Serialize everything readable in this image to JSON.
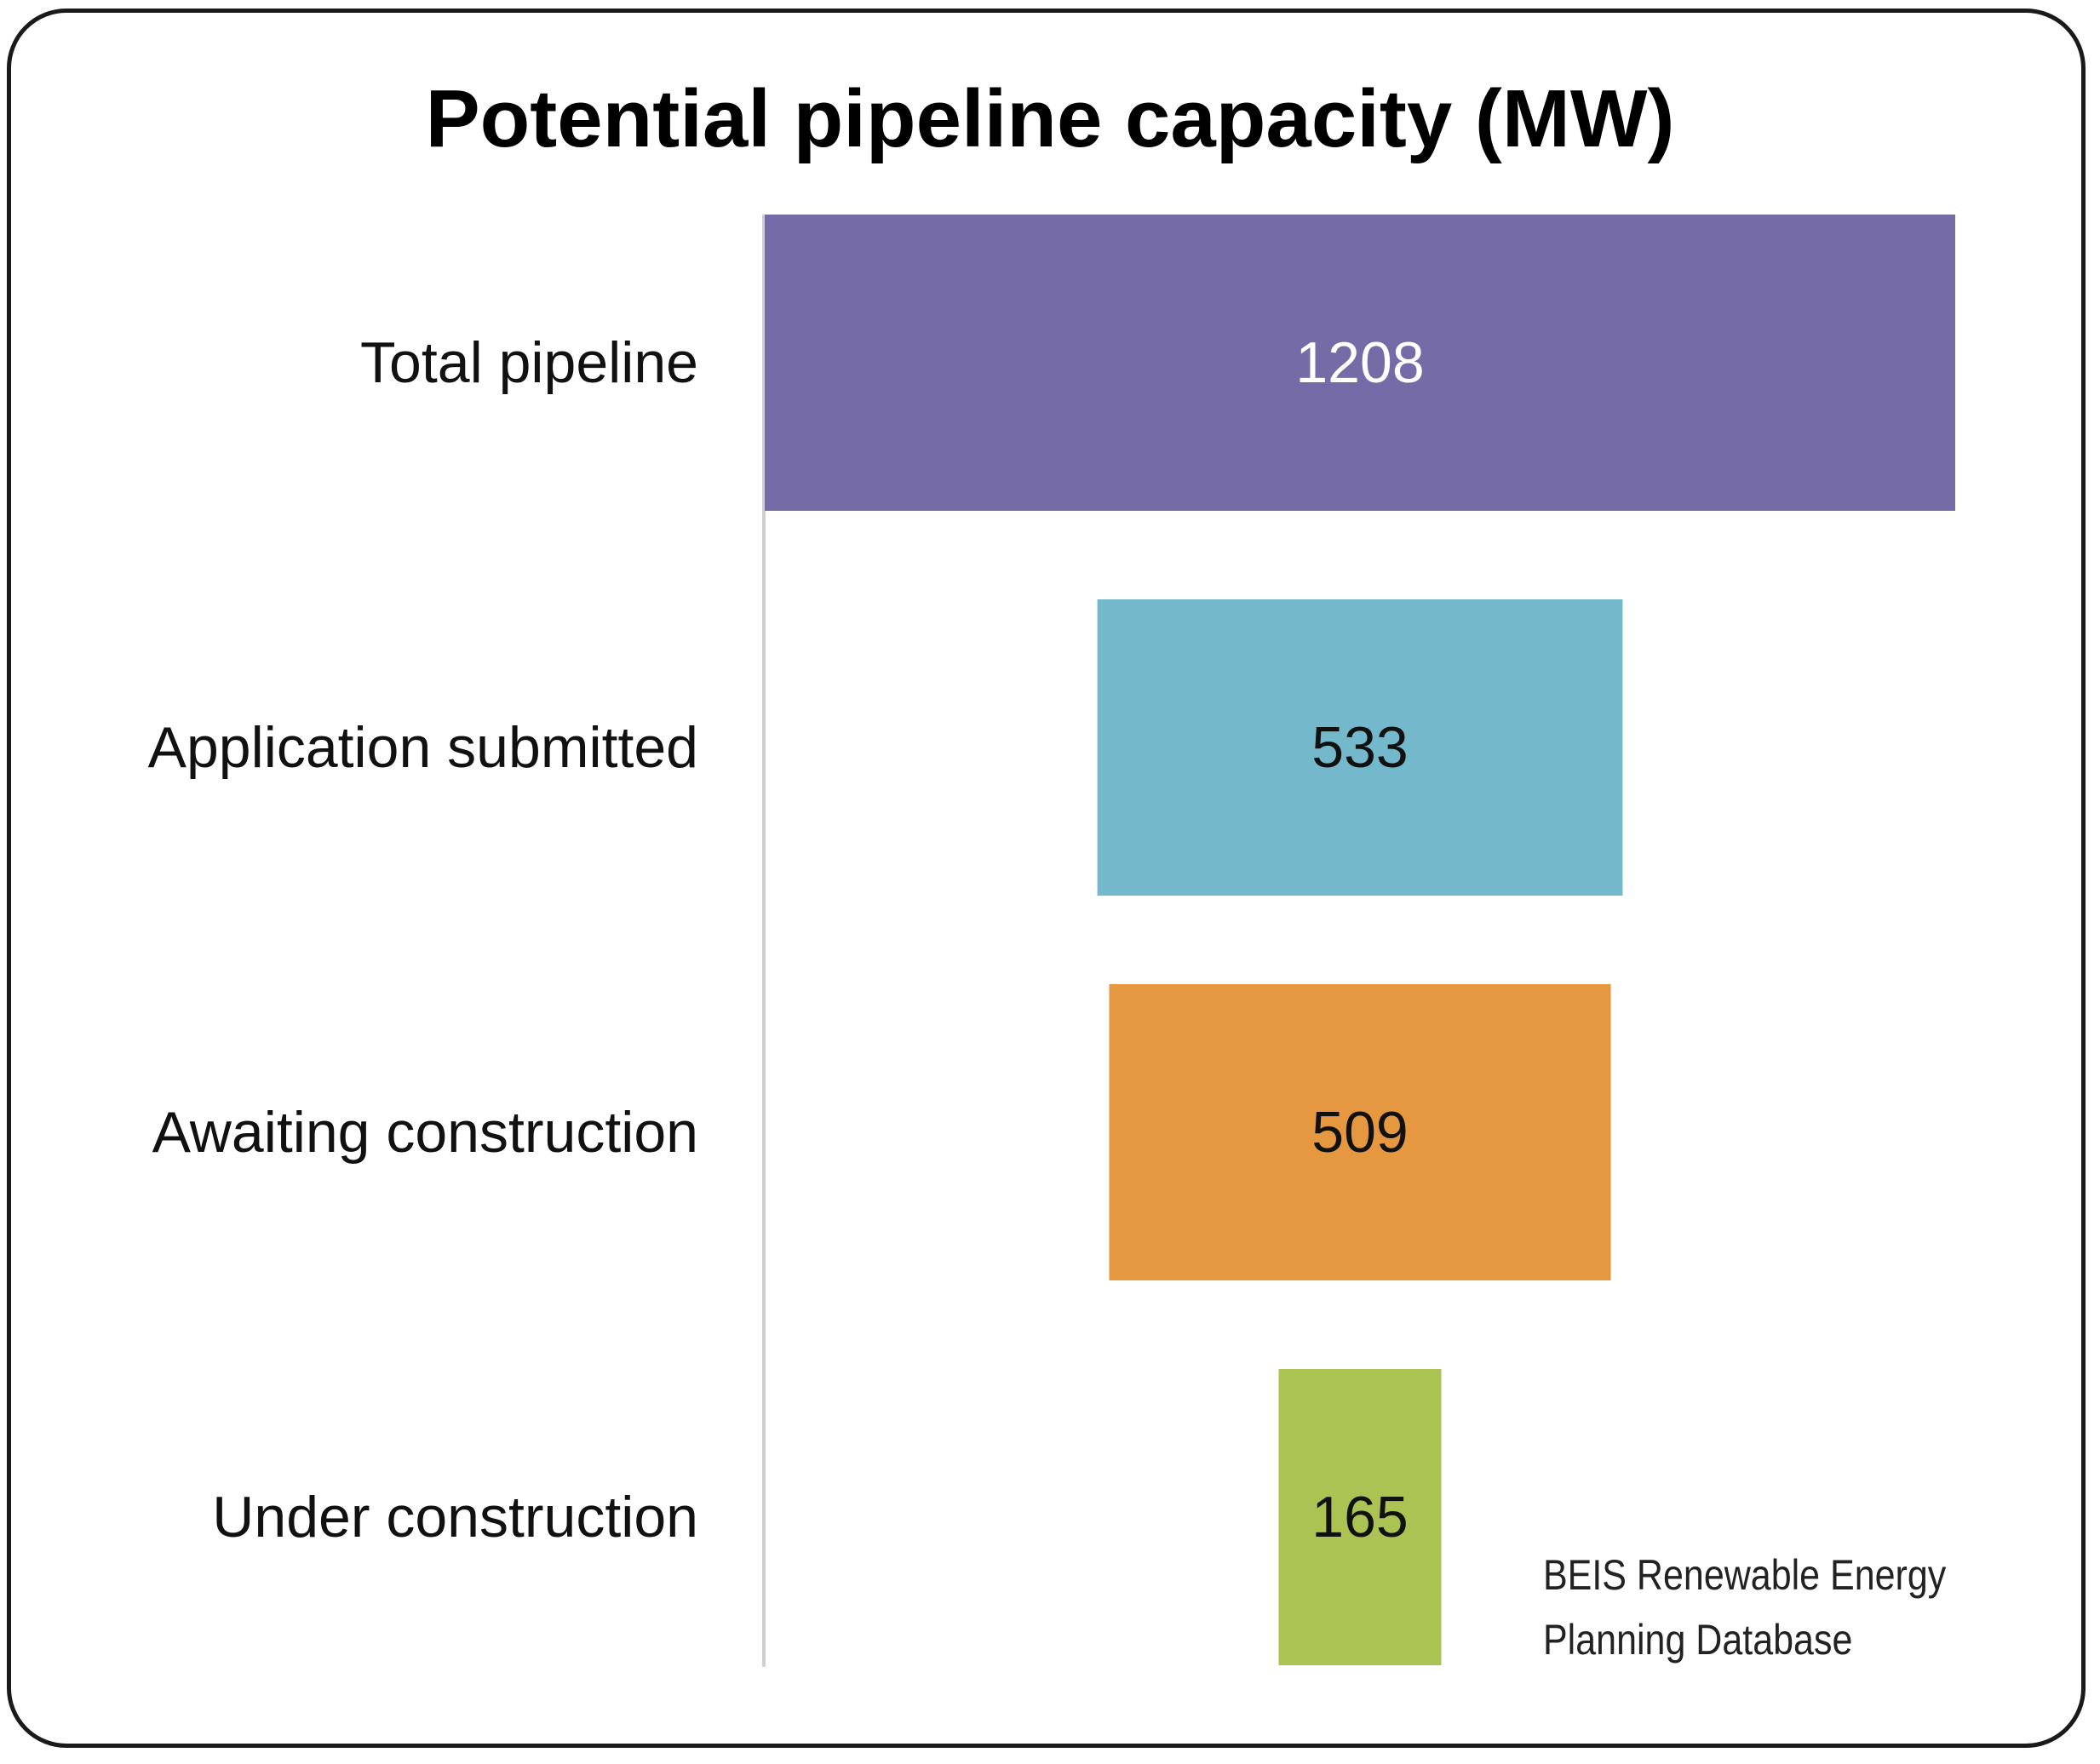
{
  "chart_data": {
    "type": "bar",
    "orientation": "horizontal",
    "style": "centered funnel",
    "title": "Potential pipeline capacity (MW)",
    "categories": [
      "Total pipeline",
      "Application submitted",
      "Awaiting construction",
      "Under construction"
    ],
    "values": [
      1208,
      533,
      509,
      165
    ],
    "value_labels": [
      "1208",
      "533",
      "509",
      "165"
    ],
    "colors": [
      "#756BA7",
      "#74B9CB",
      "#E69840",
      "#AAC353"
    ],
    "value_label_colors": [
      "#FFFFFF",
      "#111111",
      "#111111",
      "#111111"
    ],
    "xlabel": "",
    "ylabel": "",
    "grid": false,
    "legend": "none"
  },
  "source_note": {
    "line1": "BEIS Renewable Energy",
    "line2": "Planning Database"
  }
}
